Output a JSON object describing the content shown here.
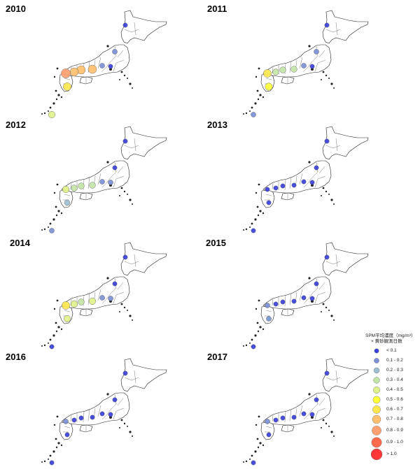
{
  "legend": {
    "title": "SPM平均濃度（mg/m³）",
    "subtitle": "× 黄砂観測日数",
    "items": [
      {
        "label": "< 0.1",
        "color": "#3a3fd9",
        "r": 3.2
      },
      {
        "label": "0.1 - 0.2",
        "color": "#7d8fd6",
        "r": 3.6
      },
      {
        "label": "0.2 - 0.3",
        "color": "#9fbfd1",
        "r": 4.0
      },
      {
        "label": "0.3 - 0.4",
        "color": "#c3e4a6",
        "r": 4.4
      },
      {
        "label": "0.4 - 0.5",
        "color": "#def28a",
        "r": 4.8
      },
      {
        "label": "0.5 - 0.6",
        "color": "#ffff3a",
        "r": 5.2
      },
      {
        "label": "0.6 - 0.7",
        "color": "#ffe74e",
        "r": 5.6
      },
      {
        "label": "0.7 - 0.8",
        "color": "#ffc070",
        "r": 6.0
      },
      {
        "label": "0.8 - 0.9",
        "color": "#ffa070",
        "r": 6.6
      },
      {
        "label": "0.9 - 1.0",
        "color": "#ff6a4e",
        "r": 7.2
      },
      {
        "label": "> 1.0",
        "color": "#ff3636",
        "r": 8.0
      }
    ]
  },
  "panels": [
    {
      "year": "2010",
      "points": [
        {
          "site": "hokkaido",
          "cls": 0
        },
        {
          "site": "tohoku",
          "cls": 1
        },
        {
          "site": "kanto",
          "cls": 0
        },
        {
          "site": "tokai",
          "cls": 1
        },
        {
          "site": "kinki",
          "cls": 7
        },
        {
          "site": "chugoku",
          "cls": 7
        },
        {
          "site": "shikoku",
          "cls": 7
        },
        {
          "site": "kyushu_n",
          "cls": 8
        },
        {
          "site": "kyushu_s",
          "cls": 6
        },
        {
          "site": "okinawa",
          "cls": 4
        }
      ]
    },
    {
      "year": "2011",
      "points": [
        {
          "site": "hokkaido",
          "cls": 0
        },
        {
          "site": "tohoku",
          "cls": 1
        },
        {
          "site": "kanto",
          "cls": 0
        },
        {
          "site": "tokai",
          "cls": 1
        },
        {
          "site": "kinki",
          "cls": 3
        },
        {
          "site": "chugoku",
          "cls": 3
        },
        {
          "site": "shikoku",
          "cls": 3
        },
        {
          "site": "kyushu_n",
          "cls": 6
        },
        {
          "site": "kyushu_s",
          "cls": 5
        },
        {
          "site": "okinawa",
          "cls": 1
        }
      ]
    },
    {
      "year": "2012",
      "points": [
        {
          "site": "hokkaido",
          "cls": 0
        },
        {
          "site": "tohoku",
          "cls": 0
        },
        {
          "site": "kanto",
          "cls": 1
        },
        {
          "site": "tokai",
          "cls": 1
        },
        {
          "site": "kinki",
          "cls": 3
        },
        {
          "site": "chugoku",
          "cls": 3
        },
        {
          "site": "shikoku",
          "cls": 3
        },
        {
          "site": "kyushu_n",
          "cls": 4
        },
        {
          "site": "kyushu_s",
          "cls": 2
        },
        {
          "site": "okinawa",
          "cls": 1
        }
      ]
    },
    {
      "year": "2013",
      "points": [
        {
          "site": "hokkaido",
          "cls": 0
        },
        {
          "site": "tohoku",
          "cls": 0
        },
        {
          "site": "kanto",
          "cls": 0
        },
        {
          "site": "tokai",
          "cls": 0
        },
        {
          "site": "kinki",
          "cls": 0
        },
        {
          "site": "chugoku",
          "cls": 0
        },
        {
          "site": "shikoku",
          "cls": 0
        },
        {
          "site": "kyushu_n",
          "cls": 0
        },
        {
          "site": "kyushu_s",
          "cls": 0
        },
        {
          "site": "okinawa",
          "cls": 0
        }
      ]
    },
    {
      "year": "2014",
      "points": [
        {
          "site": "hokkaido",
          "cls": 0
        },
        {
          "site": "tohoku",
          "cls": 0
        },
        {
          "site": "kanto",
          "cls": 1
        },
        {
          "site": "tokai",
          "cls": 1
        },
        {
          "site": "kinki",
          "cls": 4
        },
        {
          "site": "chugoku",
          "cls": 3
        },
        {
          "site": "shikoku",
          "cls": 4
        },
        {
          "site": "kyushu_n",
          "cls": 6
        },
        {
          "site": "kyushu_s",
          "cls": 4
        },
        {
          "site": "okinawa",
          "cls": 0
        }
      ]
    },
    {
      "year": "2015",
      "points": [
        {
          "site": "hokkaido",
          "cls": 0
        },
        {
          "site": "tohoku",
          "cls": 0
        },
        {
          "site": "kanto",
          "cls": 0
        },
        {
          "site": "tokai",
          "cls": 0
        },
        {
          "site": "kinki",
          "cls": 0
        },
        {
          "site": "chugoku",
          "cls": 0
        },
        {
          "site": "shikoku",
          "cls": 0
        },
        {
          "site": "kyushu_n",
          "cls": 1
        },
        {
          "site": "kyushu_s",
          "cls": 1
        },
        {
          "site": "okinawa",
          "cls": 0
        }
      ]
    },
    {
      "year": "2016",
      "points": [
        {
          "site": "hokkaido",
          "cls": 0
        },
        {
          "site": "tohoku",
          "cls": 0
        },
        {
          "site": "kanto",
          "cls": 0
        },
        {
          "site": "tokai",
          "cls": 0
        },
        {
          "site": "kinki",
          "cls": 0
        },
        {
          "site": "chugoku",
          "cls": 0
        },
        {
          "site": "shikoku",
          "cls": 0
        },
        {
          "site": "kyushu_n",
          "cls": 1
        },
        {
          "site": "kyushu_s",
          "cls": 0
        },
        {
          "site": "okinawa",
          "cls": 0
        }
      ]
    },
    {
      "year": "2017",
      "points": [
        {
          "site": "hokkaido",
          "cls": 0
        },
        {
          "site": "tohoku",
          "cls": 0
        },
        {
          "site": "kanto",
          "cls": 0
        },
        {
          "site": "tokai",
          "cls": 0
        },
        {
          "site": "kinki",
          "cls": 0
        },
        {
          "site": "chugoku",
          "cls": 0
        },
        {
          "site": "shikoku",
          "cls": 0
        },
        {
          "site": "kyushu_n",
          "cls": 1
        },
        {
          "site": "kyushu_s",
          "cls": 0
        },
        {
          "site": "okinawa",
          "cls": 0
        }
      ]
    }
  ]
}
